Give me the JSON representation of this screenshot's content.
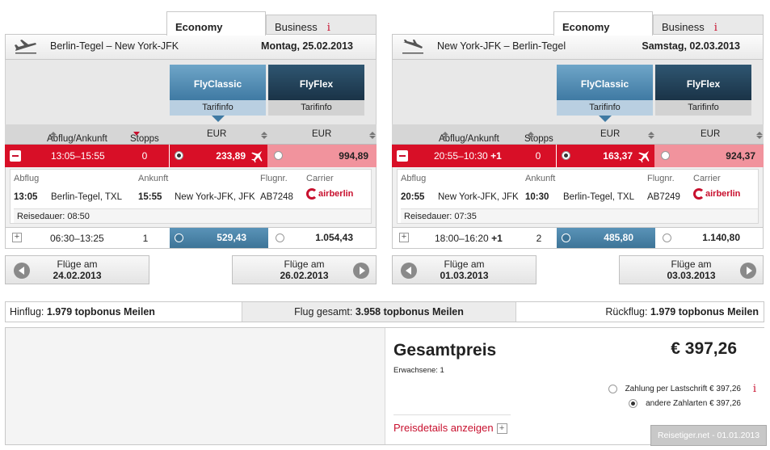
{
  "outbound": {
    "tab_economy": "Economy",
    "tab_business": "Business",
    "info_icon": "i",
    "route": "Berlin-Tegel – New York-JFK",
    "date": "Montag, 25.02.2013",
    "fare1": {
      "name": "FlyClassic",
      "info": "Tarifinfo"
    },
    "fare2": {
      "name": "FlyFlex",
      "info": "Tarifinfo"
    },
    "header": {
      "times": "Abflug/Ankunft",
      "stops": "Stopps",
      "cur1": "EUR",
      "cur2": "EUR"
    },
    "flight1": {
      "times": "13:05–15:55",
      "stops": "0",
      "eco_price": "233,89",
      "biz_price": "994,89"
    },
    "detail": {
      "lbl_dep": "Abflug",
      "lbl_arr": "Ankunft",
      "lbl_fno": "Flugnr.",
      "lbl_carrier": "Carrier",
      "dep_time": "13:05",
      "dep_airport": "Berlin-Tegel, TXL",
      "arr_time": "15:55",
      "arr_airport": "New York-JFK, JFK",
      "flight_no": "AB7248",
      "carrier": "airberlin",
      "duration": "Reisedauer: 08:50"
    },
    "flight2": {
      "times": "06:30–13:25",
      "stops": "1",
      "eco_price": "529,43",
      "biz_price": "1.054,43"
    },
    "prev": {
      "line1": "Flüge am",
      "line2": "24.02.2013"
    },
    "next": {
      "line1": "Flüge am",
      "line2": "26.02.2013"
    }
  },
  "return": {
    "tab_economy": "Economy",
    "tab_business": "Business",
    "info_icon": "i",
    "route": "New York-JFK – Berlin-Tegel",
    "date": "Samstag, 02.03.2013",
    "fare1": {
      "name": "FlyClassic",
      "info": "Tarifinfo"
    },
    "fare2": {
      "name": "FlyFlex",
      "info": "Tarifinfo"
    },
    "header": {
      "times": "Abflug/Ankunft",
      "stops": "Stopps",
      "cur1": "EUR",
      "cur2": "EUR"
    },
    "flight1": {
      "times": "20:55–10:30",
      "plus": "+1",
      "stops": "0",
      "eco_price": "163,37",
      "biz_price": "924,37"
    },
    "detail": {
      "lbl_dep": "Abflug",
      "lbl_arr": "Ankunft",
      "lbl_fno": "Flugnr.",
      "lbl_carrier": "Carrier",
      "dep_time": "20:55",
      "dep_airport": "New York-JFK, JFK",
      "arr_time": "10:30",
      "arr_airport": "Berlin-Tegel, TXL",
      "flight_no": "AB7249",
      "carrier": "airberlin",
      "duration": "Reisedauer: 07:35"
    },
    "flight2": {
      "times": "18:00–16:20",
      "plus": "+1",
      "stops": "2",
      "eco_price": "485,80",
      "biz_price": "1.140,80"
    },
    "prev": {
      "line1": "Flüge am",
      "line2": "01.03.2013"
    },
    "next": {
      "line1": "Flüge am",
      "line2": "03.03.2013"
    }
  },
  "miles": {
    "out_label": "Hinflug:",
    "out_value": "1.979 topbonus Meilen",
    "total_label": "Flug gesamt:",
    "total_value": "3.958 topbonus Meilen",
    "ret_label": "Rückflug:",
    "ret_value": "1.979 topbonus Meilen"
  },
  "total": {
    "title": "Gesamtpreis",
    "amount": "€ 397,26",
    "adults": "Erwachsene: 1",
    "pay1": "Zahlung per Lastschrift € 397,26",
    "pay2": "andere Zahlarten € 397,26",
    "info_icon": "i",
    "details_link": "Preisdetails anzeigen",
    "details_plus": "+"
  },
  "watermark": "Reisetiger.net - 01.01.2013",
  "colors": {
    "accent_red": "#d80f27",
    "fly_classic": "#4a86ad",
    "fly_flex": "#203e55"
  }
}
